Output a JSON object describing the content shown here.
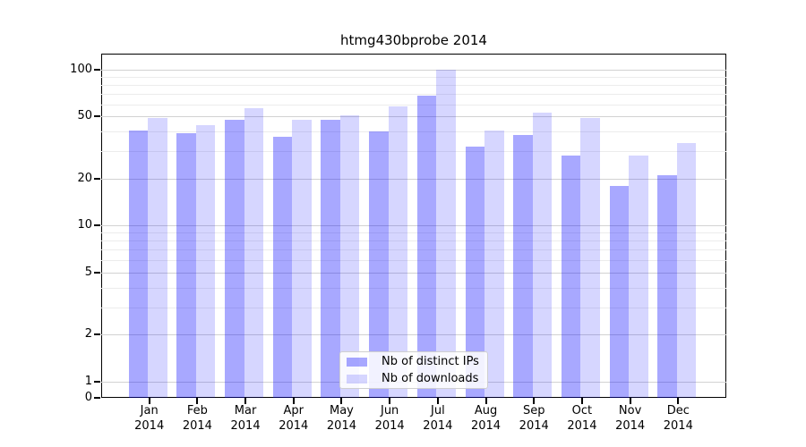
{
  "title": "htmg430bprobe 2014",
  "chart_data": {
    "type": "bar",
    "title": "htmg430bprobe 2014",
    "categories": [
      "Jan",
      "Feb",
      "Mar",
      "Apr",
      "May",
      "Jun",
      "Jul",
      "Aug",
      "Sep",
      "Oct",
      "Nov",
      "Dec"
    ],
    "year": "2014",
    "series": [
      {
        "name": "Nb of distinct IPs",
        "color": "rgba(0,0,255,0.34)",
        "values": [
          41,
          39,
          48,
          37,
          48,
          40,
          68,
          32,
          38,
          28,
          18,
          21
        ]
      },
      {
        "name": "Nb of downloads",
        "color": "rgba(0,0,255,0.16)",
        "values": [
          49,
          44,
          57,
          48,
          51,
          58,
          100,
          41,
          53,
          49,
          28,
          34
        ]
      }
    ],
    "xlabel": "",
    "ylabel": "",
    "yscale": "log-with-zero-baseline",
    "ylim": [
      0,
      100
    ],
    "y_major_ticks": [
      100,
      50,
      20,
      10,
      5,
      2,
      1,
      0
    ],
    "y_minor_gridlines": [
      90,
      80,
      70,
      60,
      40,
      30,
      9,
      8,
      7,
      6,
      4,
      3
    ],
    "grid": "on",
    "legend_position": "lower center"
  }
}
